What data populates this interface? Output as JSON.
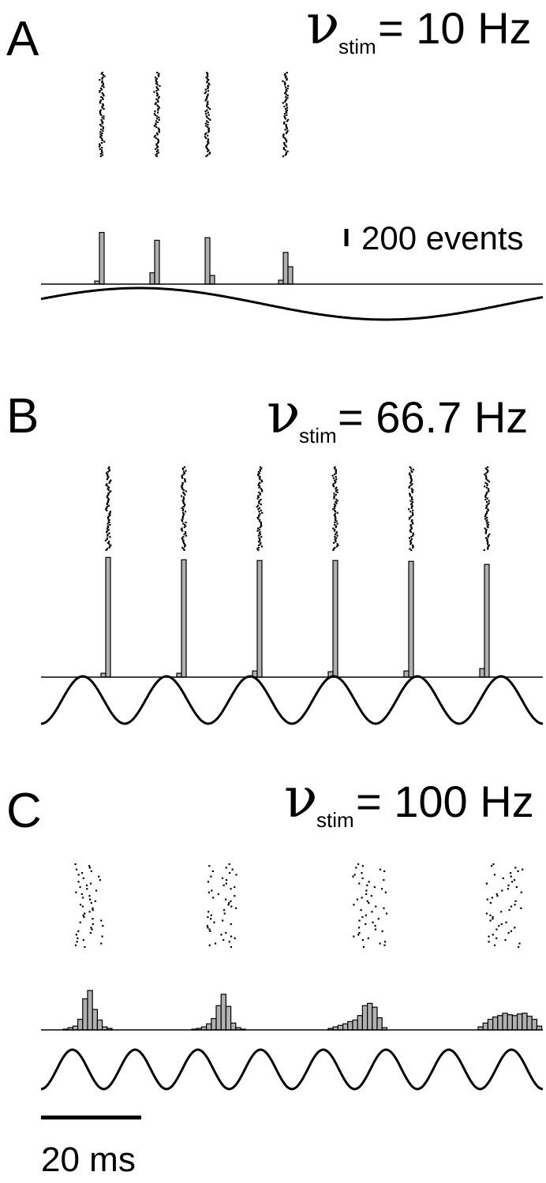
{
  "chart_data": [
    {
      "type": "bar",
      "panel": "A",
      "stimulus_frequency_label": {
        "nu": "ν",
        "sub": "stim",
        "value": "= 10 Hz"
      },
      "histogram_scale_label": "200 events",
      "histogram_scale_events": 200,
      "spike_groups": [
        {
          "peak_ms": 12.6,
          "counts": [
            35,
            595
          ]
        },
        {
          "peak_ms": 23.8,
          "counts": [
            130,
            505
          ]
        },
        {
          "peak_ms": 34.9,
          "counts": [
            535,
            100
          ]
        },
        {
          "peak_ms": 46.0,
          "counts": [
            45,
            365,
            200
          ]
        }
      ],
      "waveform": {
        "shape": "sine",
        "cycles": 1,
        "amplitude": "small"
      }
    },
    {
      "type": "bar",
      "panel": "B",
      "stimulus_frequency_label": {
        "nu": "ν",
        "sub": "stim",
        "value": "= 66.7 Hz"
      },
      "spike_groups": [
        {
          "peak_ms": 13.9,
          "counts": [
            25,
            770
          ]
        },
        {
          "peak_ms": 29.1,
          "counts": [
            25,
            755
          ]
        },
        {
          "peak_ms": 44.2,
          "counts": [
            40,
            750
          ]
        },
        {
          "peak_ms": 59.3,
          "counts": [
            35,
            750
          ]
        },
        {
          "peak_ms": 74.5,
          "counts": [
            40,
            745
          ]
        },
        {
          "peak_ms": 89.6,
          "counts": [
            55,
            725
          ]
        }
      ],
      "waveform": {
        "shape": "sine",
        "cycles": 6
      }
    },
    {
      "type": "bar",
      "panel": "C",
      "stimulus_frequency_label": {
        "nu": "ν",
        "sub": "stim",
        "value": "= 100 Hz"
      },
      "spike_groups": [
        {
          "counts": [
            5,
            15,
            25,
            70,
            205,
            260,
            135,
            65,
            20,
            10
          ]
        },
        {
          "counts": [
            5,
            10,
            20,
            40,
            75,
            160,
            235,
            155,
            45,
            15,
            5
          ]
        },
        {
          "counts": [
            10,
            20,
            30,
            40,
            55,
            65,
            95,
            160,
            175,
            150,
            80,
            15
          ]
        },
        {
          "counts": [
            20,
            45,
            70,
            85,
            95,
            110,
            100,
            95,
            105,
            110,
            90,
            70,
            25
          ]
        }
      ],
      "waveform": {
        "shape": "sine",
        "cycles": 8
      }
    }
  ],
  "panels": {
    "A": {
      "letter": "A"
    },
    "B": {
      "letter": "B"
    },
    "C": {
      "letter": "C"
    }
  },
  "time_scale_label": "20 ms",
  "time_scale_ms": 20,
  "colors": {
    "bar_fill": "#b0b0b0",
    "ink": "#000000",
    "background": "#ffffff"
  }
}
